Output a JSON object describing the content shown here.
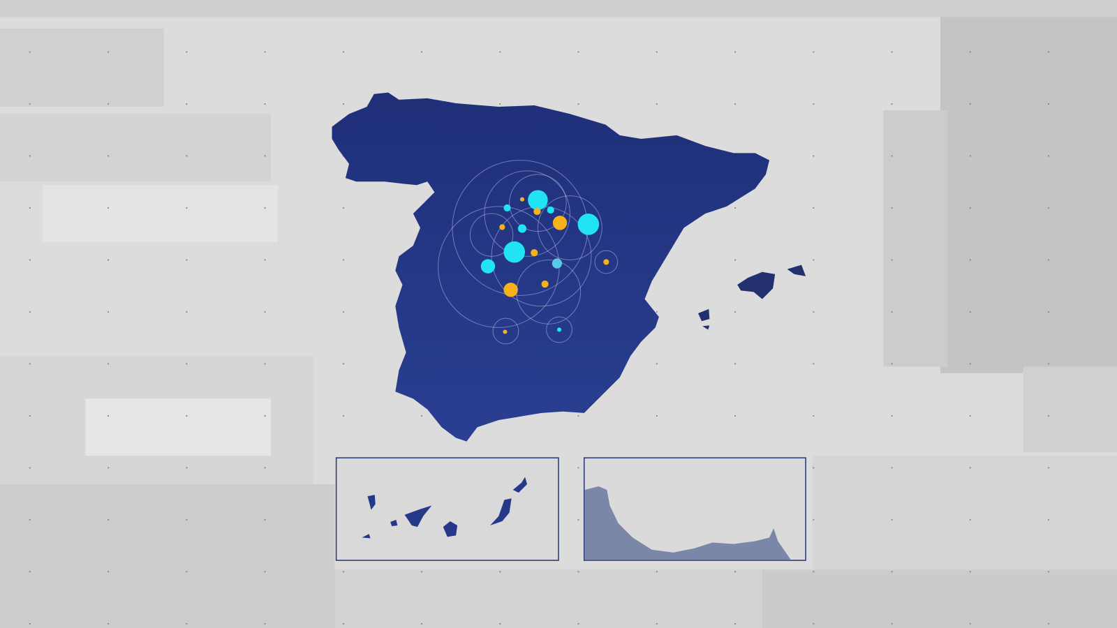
{
  "map": {
    "land_color": "#26388a",
    "inset_border_color": "#2a3777",
    "inset_coast_color": "#7a87a8",
    "marker_colors": {
      "cyan": "#22e3f2",
      "amber": "#f5b21b",
      "light_blue": "#5bc8e8"
    },
    "insets": [
      "canary-islands",
      "ceuta-melilla-coast"
    ]
  },
  "background": {
    "base": "#dedede",
    "panel_light": "#e8e8e8",
    "panel_dark": "#c8c8c8"
  }
}
